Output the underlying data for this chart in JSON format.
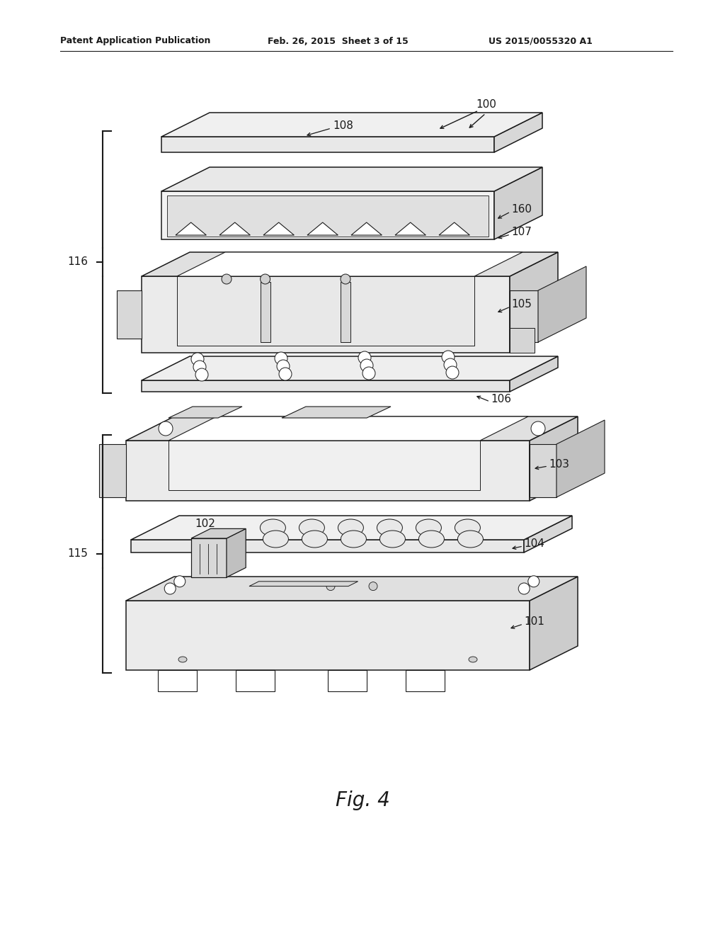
{
  "header_left": "Patent Application Publication",
  "header_mid": "Feb. 26, 2015  Sheet 3 of 15",
  "header_right": "US 2015/0055320 A1",
  "fig_label": "Fig. 4",
  "bg_color": "#ffffff",
  "line_color": "#1a1a1a",
  "lw": 1.1
}
